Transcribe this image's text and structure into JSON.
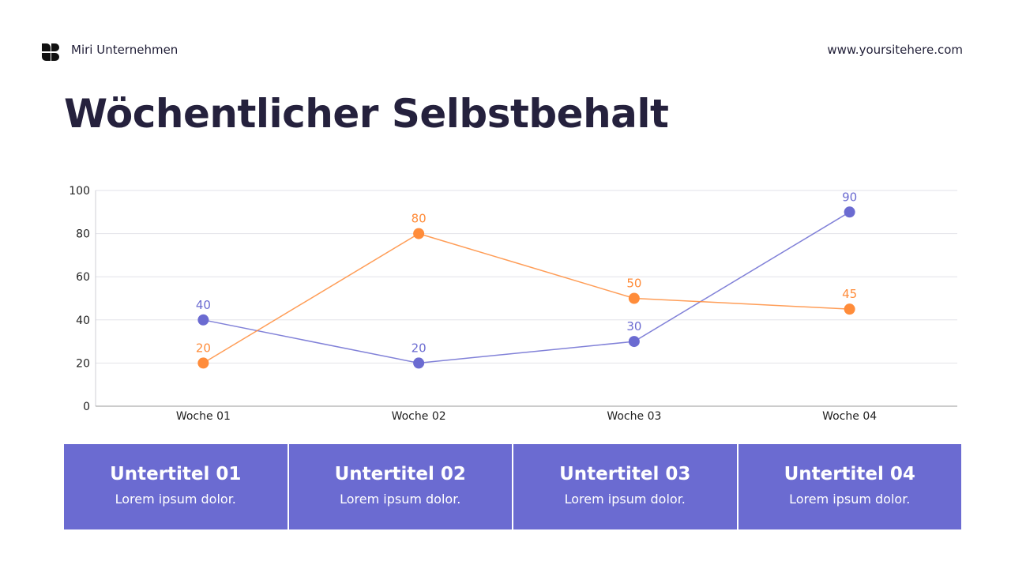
{
  "header": {
    "brand": "Miri Unternehmen",
    "website": "www.yoursitehere.com",
    "logo_icon": "brand-logo-icon"
  },
  "title": "Wöchentlicher Selbstbehalt",
  "chart_data": {
    "type": "line",
    "categories": [
      "Woche 01",
      "Woche 02",
      "Woche 03",
      "Woche 04"
    ],
    "series": [
      {
        "values": [
          40,
          20,
          30,
          90
        ],
        "color": "#6b6bd1"
      },
      {
        "values": [
          20,
          80,
          50,
          45
        ],
        "color": "#ff8c3a"
      }
    ],
    "ylim": [
      0,
      100
    ],
    "yticks": [
      0,
      20,
      40,
      60,
      80,
      100
    ],
    "grid": true,
    "data_labels": true
  },
  "cards": [
    {
      "title": "Untertitel 01",
      "text": "Lorem ipsum dolor."
    },
    {
      "title": "Untertitel 02",
      "text": "Lorem ipsum dolor."
    },
    {
      "title": "Untertitel 03",
      "text": "Lorem ipsum dolor."
    },
    {
      "title": "Untertitel 04",
      "text": "Lorem ipsum dolor."
    }
  ],
  "colors": {
    "accent": "#6b6bd1",
    "secondary": "#ff8c3a",
    "text": "#25213d"
  }
}
